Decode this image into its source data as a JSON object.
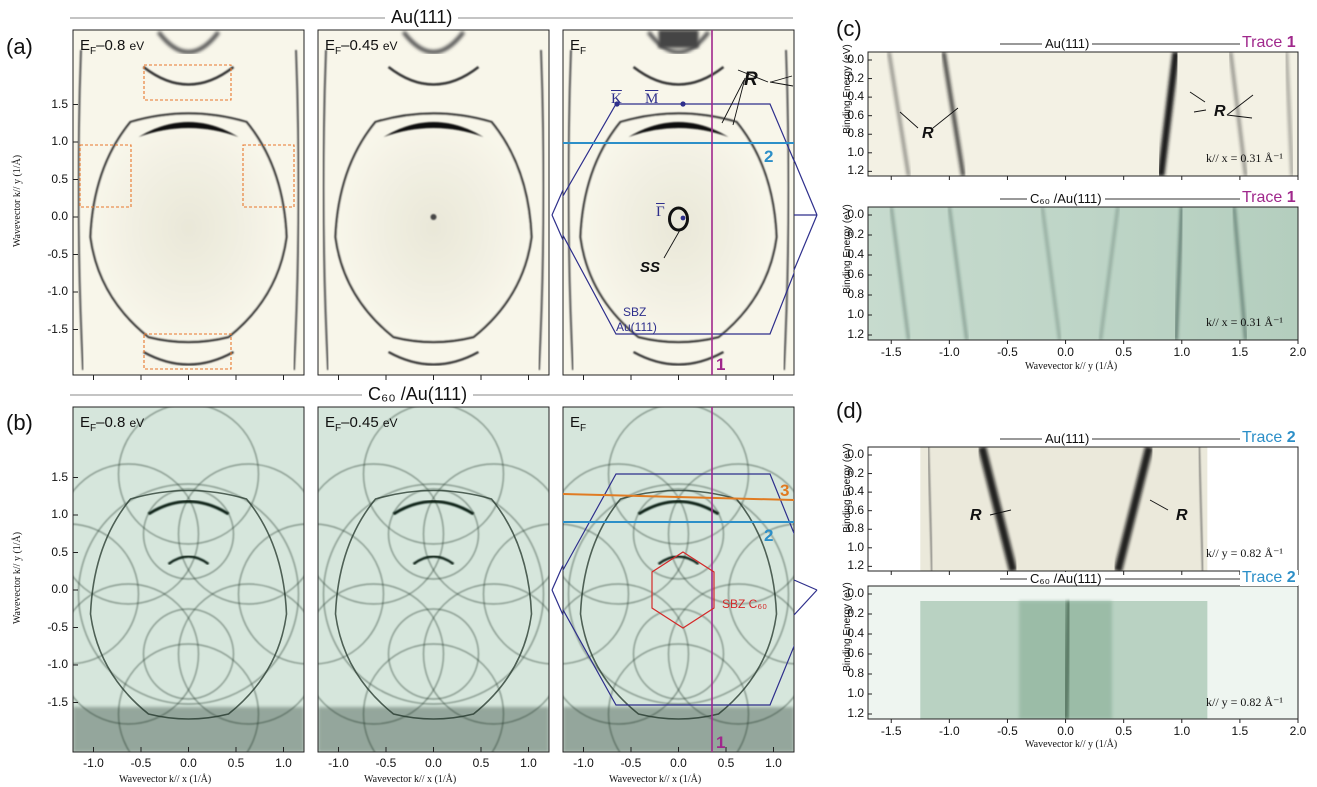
{
  "sections": {
    "top": "Au(111)",
    "bottom": "C₆₀ /Au(111)"
  },
  "panel_letters": {
    "a": "(a)",
    "b": "(b)",
    "c": "(c)",
    "d": "(d)"
  },
  "energy_labels": {
    "e1_base": "E",
    "e1_sub": "F",
    "e1_rest": "–0.8 ",
    "e1_unit": "eV",
    "e2_rest": "–0.45 ",
    "e2_unit": "eV"
  },
  "maps": {
    "ylabel": "Wavevector k// y (1/Å)",
    "xlabel": "Wavevector k// x (1/Å)",
    "yticks": [
      "1.5",
      "1.0",
      "0.5",
      "0.0",
      "-0.5",
      "-1.0",
      "-1.5"
    ],
    "xticks": [
      "-1.0",
      "-0.5",
      "0.0",
      "0.5",
      "1.0"
    ]
  },
  "annotations": {
    "R": "R",
    "SS": "SS",
    "K": "K",
    "M": "M",
    "Gamma": "Γ",
    "sbz_au_1": "SBZ",
    "sbz_au_2": "Au(111)",
    "sbz_c60": "SBZ C₆₀",
    "line1": "1",
    "line2": "2",
    "line3": "3"
  },
  "cuts": {
    "ylabel": "Binding Energy (eV)",
    "xlabel": "Wavevector k// y (1/Å)",
    "yticks": [
      "0.0",
      "0.2",
      "0.4",
      "0.6",
      "0.8",
      "1.0",
      "1.2"
    ],
    "xticks": [
      "-1.5",
      "-1.0",
      "-0.5",
      "0.0",
      "0.5",
      "1.0",
      "1.5",
      "2.0"
    ],
    "c_top_title": "Au(111)",
    "c_bot_title": "C₆₀ /Au(111)",
    "d_top_title": "Au(111)",
    "d_bot_title": "C₆₀ /Au(111)",
    "trace_word": "Trace",
    "trace1_num": "1",
    "trace2_num": "2",
    "kx_label": "k// x = 0.31 Å⁻¹",
    "ky_label": "k// y = 0.82 Å⁻¹"
  },
  "colors": {
    "au_bg": "#f8f6ea",
    "c60_bg": "#d6e6dc",
    "trace1": "#a0288c",
    "trace2": "#2c8fc8",
    "trace3": "#e07b22",
    "bz": "#2e2f8c",
    "c60bz": "#d42a2a"
  }
}
